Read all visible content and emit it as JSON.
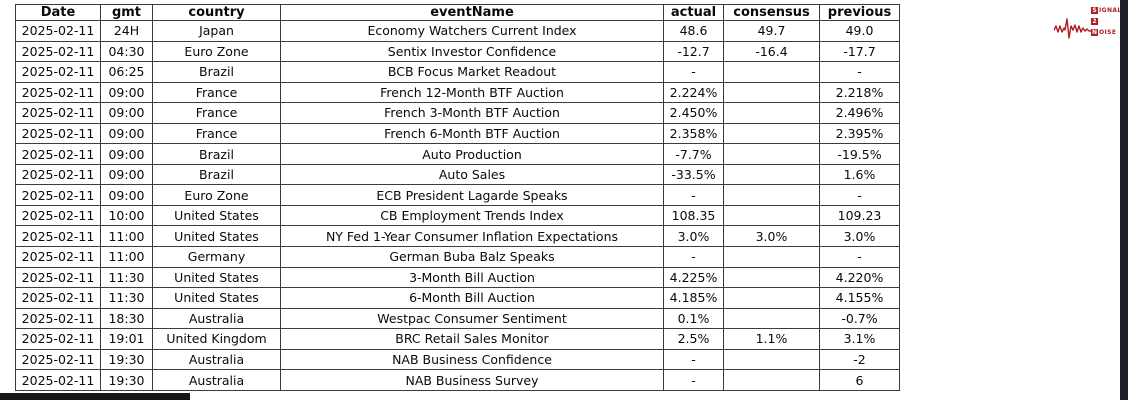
{
  "accent_color": "#b01e24",
  "scrollbar_color": "#1d2026",
  "bottom_bar_color": "#15171a",
  "logo": {
    "line1_initial": "S",
    "line1_rest": "IGNAL",
    "line2": "2",
    "line3_initial": "N",
    "line3_rest": "OISE"
  },
  "table": {
    "columns": [
      "Date",
      "gmt",
      "country",
      "eventName",
      "actual",
      "consensus",
      "previous"
    ],
    "rows": [
      [
        "2025-02-11",
        "24H",
        "Japan",
        "Economy Watchers Current Index",
        "48.6",
        "49.7",
        "49.0"
      ],
      [
        "2025-02-11",
        "04:30",
        "Euro Zone",
        "Sentix Investor Confidence",
        "-12.7",
        "-16.4",
        "-17.7"
      ],
      [
        "2025-02-11",
        "06:25",
        "Brazil",
        "BCB Focus Market Readout",
        "-",
        "",
        "-"
      ],
      [
        "2025-02-11",
        "09:00",
        "France",
        "French 12-Month BTF Auction",
        "2.224%",
        "",
        "2.218%"
      ],
      [
        "2025-02-11",
        "09:00",
        "France",
        "French 3-Month BTF Auction",
        "2.450%",
        "",
        "2.496%"
      ],
      [
        "2025-02-11",
        "09:00",
        "France",
        "French 6-Month BTF Auction",
        "2.358%",
        "",
        "2.395%"
      ],
      [
        "2025-02-11",
        "09:00",
        "Brazil",
        "Auto Production",
        "-7.7%",
        "",
        "-19.5%"
      ],
      [
        "2025-02-11",
        "09:00",
        "Brazil",
        "Auto Sales",
        "-33.5%",
        "",
        "1.6%"
      ],
      [
        "2025-02-11",
        "09:00",
        "Euro Zone",
        "ECB President Lagarde Speaks",
        "-",
        "",
        "-"
      ],
      [
        "2025-02-11",
        "10:00",
        "United States",
        "CB Employment Trends Index",
        "108.35",
        "",
        "109.23"
      ],
      [
        "2025-02-11",
        "11:00",
        "United States",
        "NY Fed 1-Year Consumer Inflation Expectations",
        "3.0%",
        "3.0%",
        "3.0%"
      ],
      [
        "2025-02-11",
        "11:00",
        "Germany",
        "German Buba Balz Speaks",
        "-",
        "",
        "-"
      ],
      [
        "2025-02-11",
        "11:30",
        "United States",
        "3-Month Bill Auction",
        "4.225%",
        "",
        "4.220%"
      ],
      [
        "2025-02-11",
        "11:30",
        "United States",
        "6-Month Bill Auction",
        "4.185%",
        "",
        "4.155%"
      ],
      [
        "2025-02-11",
        "18:30",
        "Australia",
        "Westpac Consumer Sentiment",
        "0.1%",
        "",
        "-0.7%"
      ],
      [
        "2025-02-11",
        "19:01",
        "United Kingdom",
        "BRC Retail Sales Monitor",
        "2.5%",
        "1.1%",
        "3.1%"
      ],
      [
        "2025-02-11",
        "19:30",
        "Australia",
        "NAB Business Confidence",
        "-",
        "",
        "-2"
      ],
      [
        "2025-02-11",
        "19:30",
        "Australia",
        "NAB Business Survey",
        "-",
        "",
        "6"
      ]
    ]
  }
}
